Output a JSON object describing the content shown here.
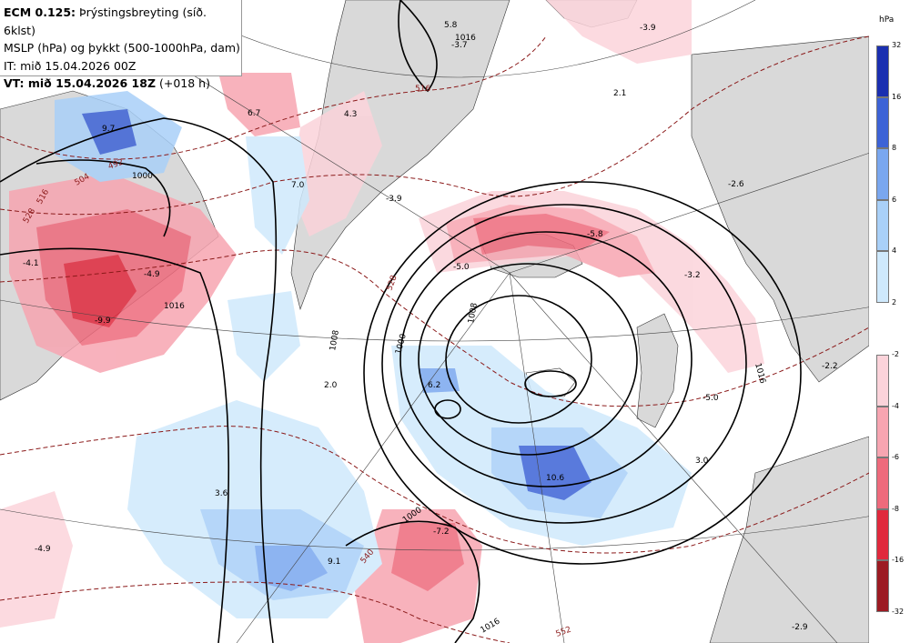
{
  "header": {
    "line1_model": "ECM 0.125:",
    "line1_rest": "Þrýstingsbreyting (síð. 6klst)",
    "line2": "MSLP (hPa) og þykkt (500-1000hPa, dam)",
    "line3": "IT: mið 15.04.2026 00Z",
    "line4_vt": "VT: mið 15.04.2026 18Z",
    "line4_rest": "(+018 h)"
  },
  "legend": {
    "unit": "hPa",
    "blue_ticks": [
      "32",
      "16",
      "8",
      "6",
      "4",
      "2"
    ],
    "red_ticks": [
      "-2",
      "-4",
      "-6",
      "-8",
      "-16",
      "-32"
    ],
    "blue_colors": [
      "#1a2fb0",
      "#3d63d6",
      "#7aa7ef",
      "#a9d0f8",
      "#cfe9fc"
    ],
    "red_colors": [
      "#fbd3da",
      "#f7a5b1",
      "#ee6a7c",
      "#e0293d",
      "#9c1a22"
    ]
  },
  "map_labels": {
    "pressure_change": [
      "9.7",
      "-4.1",
      "-4.9",
      "-9.9",
      "6.7",
      "4.3",
      "7.0",
      "5.8",
      "-3.7",
      "-3.9",
      "2.1",
      "-3.9",
      "-5.8",
      "-5.0",
      "-2.6",
      "-3.2",
      "-2.2",
      "6.2",
      "10.6",
      "3.0",
      "3.6",
      "-4.9",
      "9.1",
      "-7.2",
      "-2.9",
      "2.0",
      "-5.0"
    ],
    "isobars": [
      "1000",
      "1016",
      "1016",
      "1008",
      "1000",
      "1016",
      "1000",
      "1016",
      "1008"
    ],
    "thickness": [
      "516",
      "528",
      "504",
      "492",
      "528",
      "540",
      "552",
      "516"
    ]
  }
}
